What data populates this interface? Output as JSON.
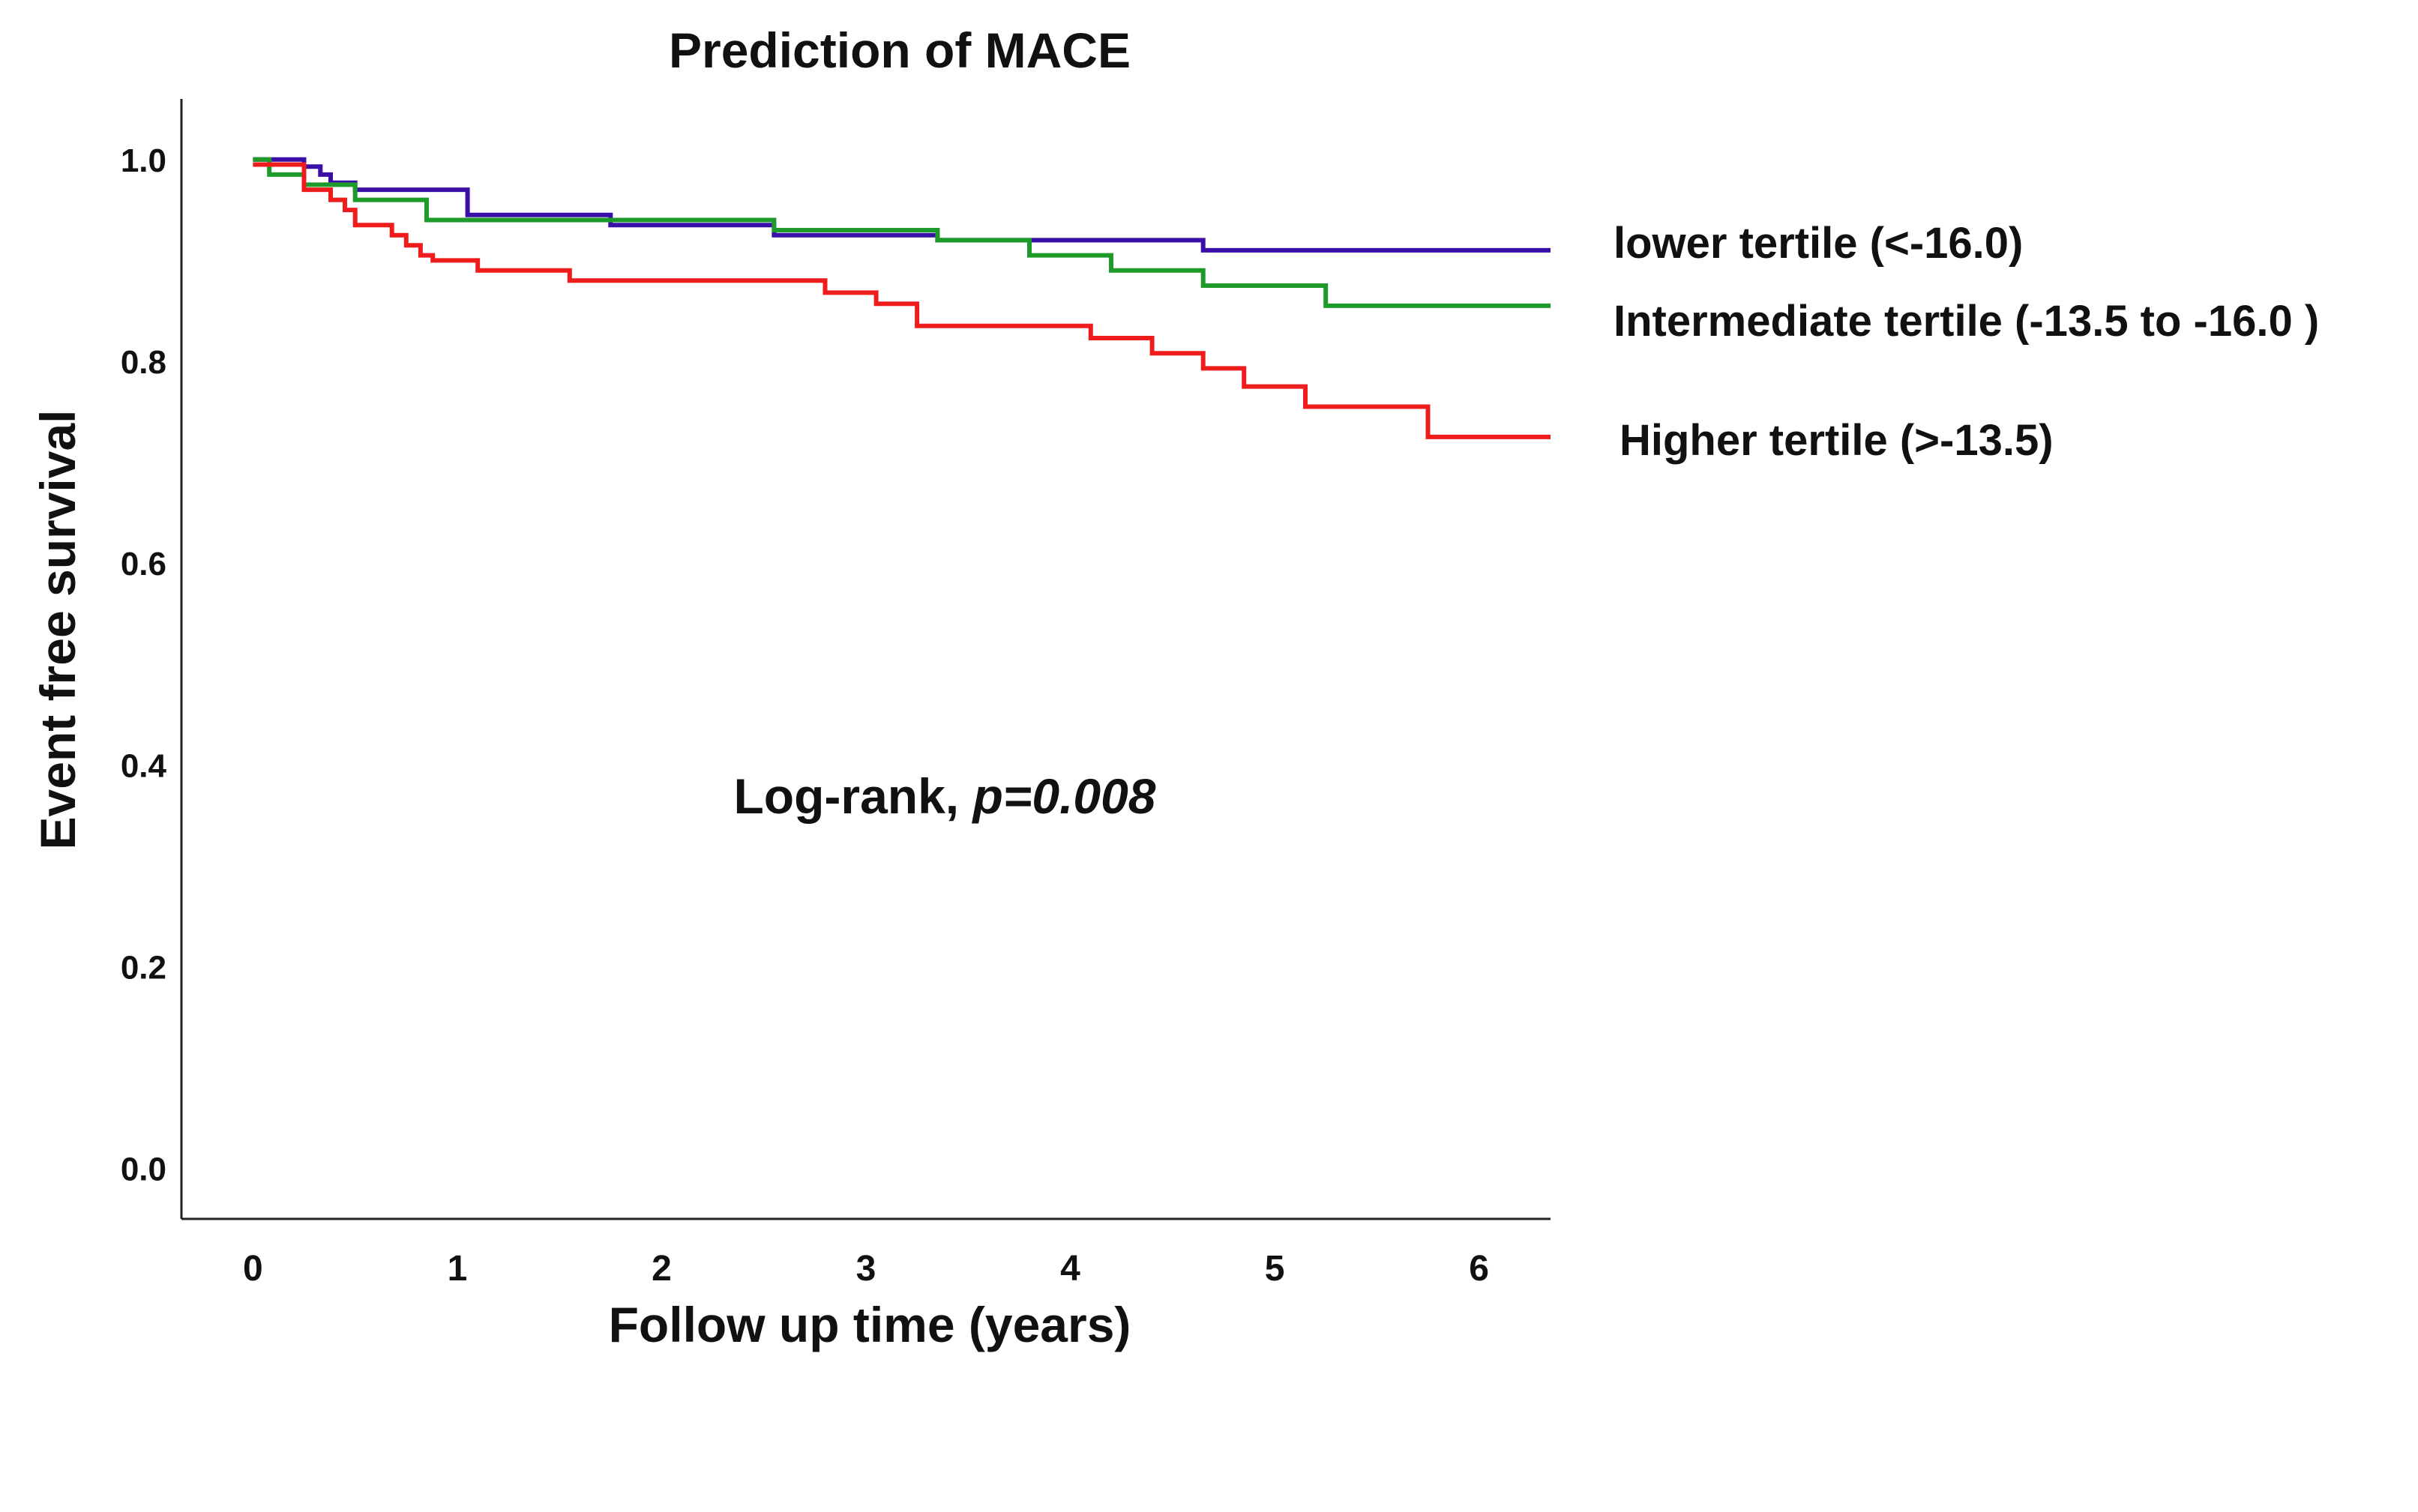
{
  "chart_data": {
    "type": "line",
    "step": true,
    "title": "Prediction of MACE",
    "xlabel": "Follow up time (years)",
    "ylabel": "Event free survival",
    "xlim": [
      -0.35,
      6.35
    ],
    "ylim": [
      -0.05,
      1.06
    ],
    "xticks": [
      0,
      1,
      2,
      3,
      4,
      5,
      6
    ],
    "xtick_labels": [
      "0",
      "1",
      "2",
      "3",
      "4",
      "5",
      "6"
    ],
    "yticks": [
      0.0,
      0.2,
      0.4,
      0.6,
      0.8,
      1.0
    ],
    "ytick_labels": [
      "0.0",
      "0.2",
      "0.4",
      "0.6",
      "0.8",
      "1.0"
    ],
    "grid": false,
    "legend": "right",
    "annotation": {
      "prefix": "Log-rank, ",
      "value": "p=0.008"
    },
    "series": [
      {
        "name": "lower tertile (<-16.0)",
        "color": "#3a0fa8",
        "points": [
          [
            0,
            1.0
          ],
          [
            0.25,
            1.0
          ],
          [
            0.25,
            0.993
          ],
          [
            0.33,
            0.993
          ],
          [
            0.33,
            0.985
          ],
          [
            0.38,
            0.985
          ],
          [
            0.38,
            0.977
          ],
          [
            0.5,
            0.977
          ],
          [
            0.5,
            0.97
          ],
          [
            1.05,
            0.97
          ],
          [
            1.05,
            0.945
          ],
          [
            1.75,
            0.945
          ],
          [
            1.75,
            0.935
          ],
          [
            2.55,
            0.935
          ],
          [
            2.55,
            0.925
          ],
          [
            3.35,
            0.925
          ],
          [
            3.35,
            0.92
          ],
          [
            4.65,
            0.92
          ],
          [
            4.65,
            0.91
          ],
          [
            6.35,
            0.91
          ]
        ]
      },
      {
        "name": "Intermediate tertile (-13.5 to -16.0 )",
        "color": "#1e9a2a",
        "points": [
          [
            0,
            1.0
          ],
          [
            0.08,
            1.0
          ],
          [
            0.08,
            0.985
          ],
          [
            0.25,
            0.985
          ],
          [
            0.25,
            0.975
          ],
          [
            0.5,
            0.975
          ],
          [
            0.5,
            0.96
          ],
          [
            0.85,
            0.96
          ],
          [
            0.85,
            0.94
          ],
          [
            2.55,
            0.94
          ],
          [
            2.55,
            0.93
          ],
          [
            3.35,
            0.93
          ],
          [
            3.35,
            0.92
          ],
          [
            3.8,
            0.92
          ],
          [
            3.8,
            0.905
          ],
          [
            4.2,
            0.905
          ],
          [
            4.2,
            0.89
          ],
          [
            4.65,
            0.89
          ],
          [
            4.65,
            0.875
          ],
          [
            5.25,
            0.875
          ],
          [
            5.25,
            0.855
          ],
          [
            6.35,
            0.855
          ]
        ]
      },
      {
        "name": "Higher tertile (>-13.5)",
        "color": "#ee1c1c",
        "points": [
          [
            0,
            0.995
          ],
          [
            0.25,
            0.995
          ],
          [
            0.25,
            0.97
          ],
          [
            0.38,
            0.97
          ],
          [
            0.38,
            0.96
          ],
          [
            0.45,
            0.96
          ],
          [
            0.45,
            0.95
          ],
          [
            0.5,
            0.95
          ],
          [
            0.5,
            0.935
          ],
          [
            0.68,
            0.935
          ],
          [
            0.68,
            0.925
          ],
          [
            0.75,
            0.925
          ],
          [
            0.75,
            0.915
          ],
          [
            0.82,
            0.915
          ],
          [
            0.82,
            0.905
          ],
          [
            0.88,
            0.905
          ],
          [
            0.88,
            0.9
          ],
          [
            1.1,
            0.9
          ],
          [
            1.1,
            0.89
          ],
          [
            1.55,
            0.89
          ],
          [
            1.55,
            0.88
          ],
          [
            2.8,
            0.88
          ],
          [
            2.8,
            0.868
          ],
          [
            3.05,
            0.868
          ],
          [
            3.05,
            0.857
          ],
          [
            3.25,
            0.857
          ],
          [
            3.25,
            0.835
          ],
          [
            4.1,
            0.835
          ],
          [
            4.1,
            0.823
          ],
          [
            4.4,
            0.823
          ],
          [
            4.4,
            0.808
          ],
          [
            4.65,
            0.808
          ],
          [
            4.65,
            0.793
          ],
          [
            4.85,
            0.793
          ],
          [
            4.85,
            0.775
          ],
          [
            5.15,
            0.775
          ],
          [
            5.15,
            0.755
          ],
          [
            5.75,
            0.755
          ],
          [
            5.75,
            0.725
          ],
          [
            6.35,
            0.725
          ]
        ]
      }
    ]
  }
}
